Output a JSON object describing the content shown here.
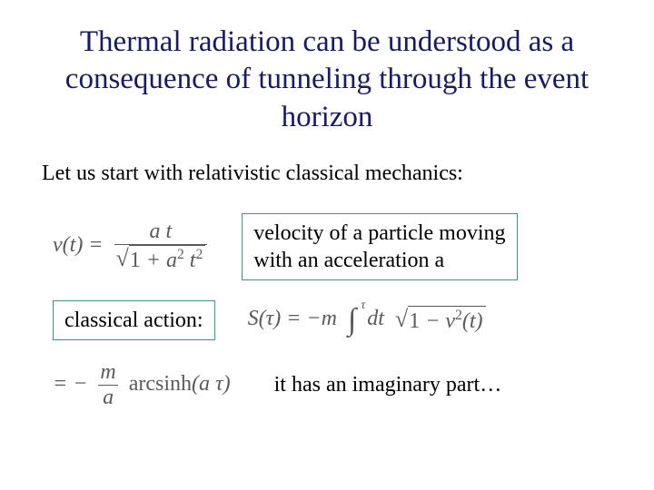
{
  "title": "Thermal radiation can be understood as a consequence of tunneling through the event horizon",
  "intro": "Let us start with relativistic classical mechanics:",
  "row1": {
    "box_l1": "velocity of a particle moving",
    "box_l2": "with an acceleration a"
  },
  "row2": {
    "box": "classical action:"
  },
  "row3": {
    "text": "it has an imaginary part…"
  },
  "colors": {
    "title_color": "#1a1a5e",
    "text_color": "#000000",
    "formula_color": "#5a5a5a",
    "box_border": "#4a8a8a",
    "background": "#ffffff"
  },
  "fonts": {
    "title_pt": 33,
    "body_pt": 24,
    "formula_pt": 24
  }
}
